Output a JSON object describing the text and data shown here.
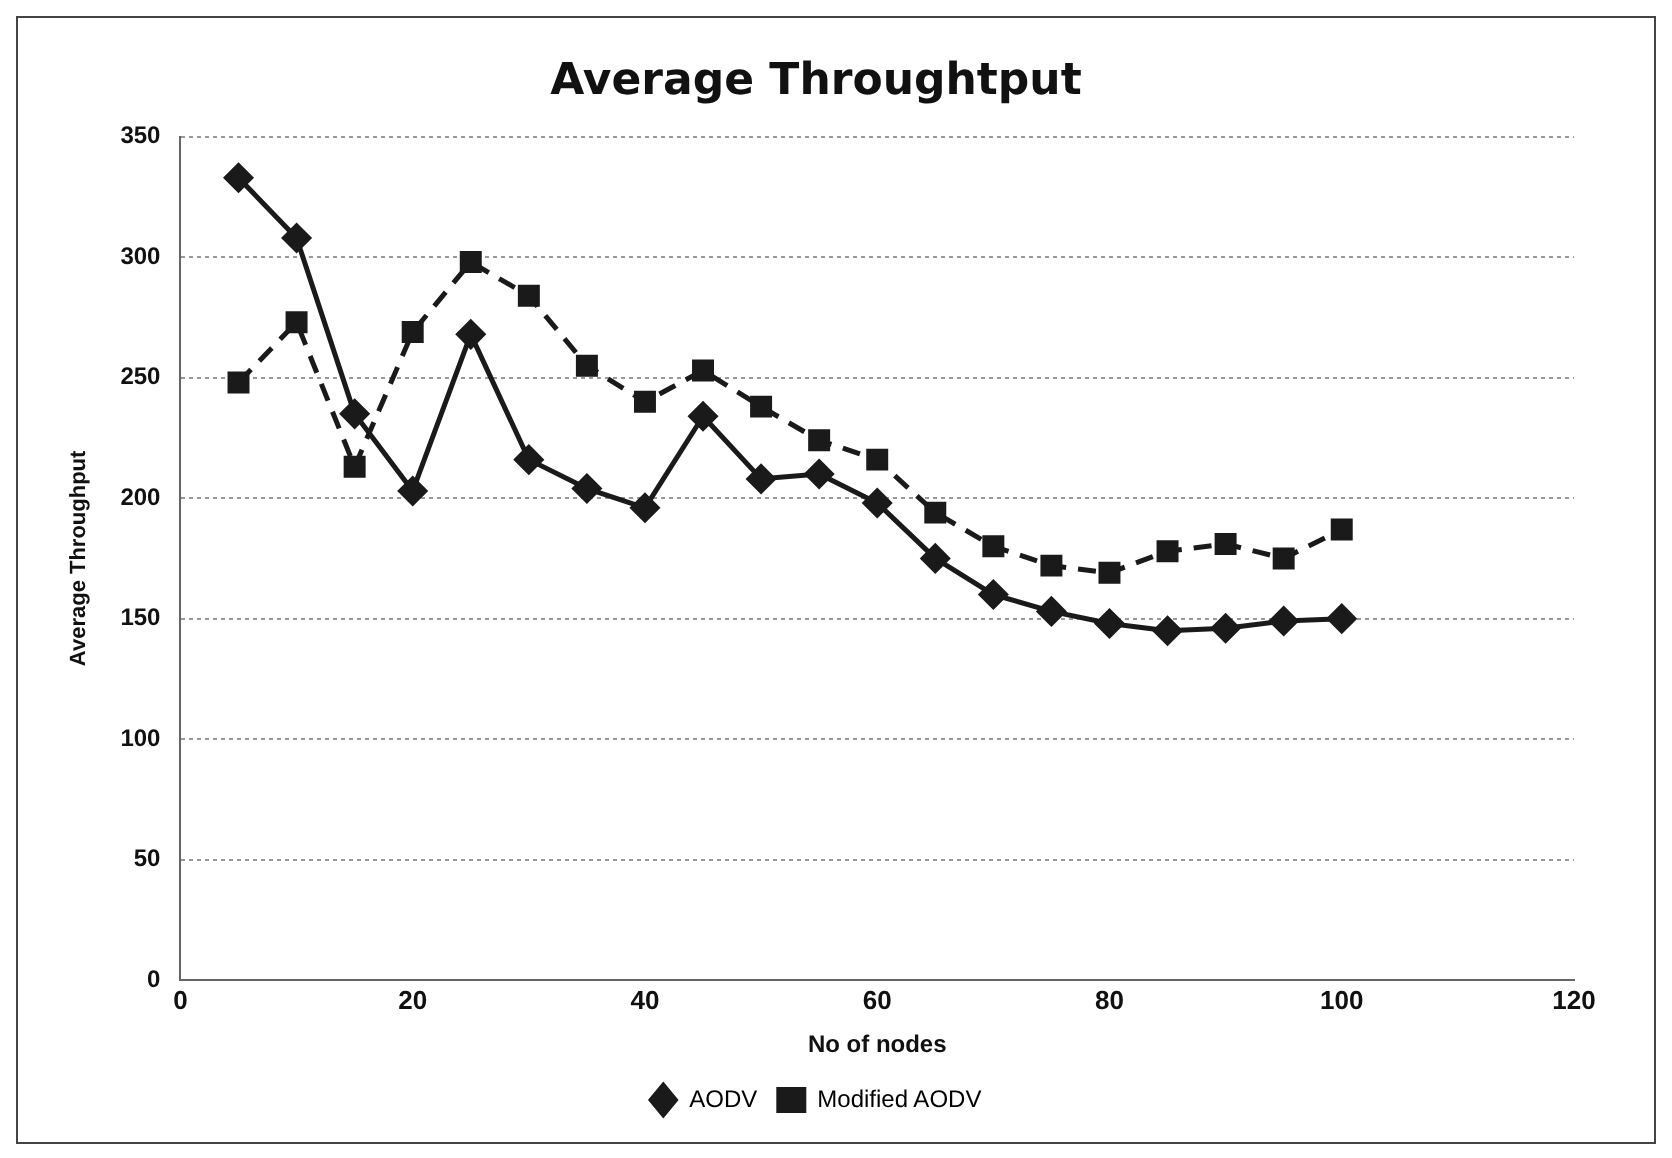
{
  "chart_data": {
    "type": "line",
    "title": "Average Throughtput",
    "xlabel": "No of nodes",
    "ylabel": "Average Throughput",
    "x": [
      5,
      10,
      15,
      20,
      25,
      30,
      35,
      40,
      45,
      50,
      55,
      60,
      65,
      70,
      75,
      80,
      85,
      90,
      95,
      100
    ],
    "series": [
      {
        "name": "AODV",
        "color": "#1a1a1a",
        "marker": "diamond",
        "line_style": "solid",
        "values": [
          333,
          308,
          235,
          203,
          268,
          216,
          204,
          196,
          234,
          208,
          210,
          198,
          175,
          160,
          153,
          148,
          145,
          146,
          149,
          150
        ]
      },
      {
        "name": "Modified AODV",
        "color": "#1a1a1a",
        "marker": "square",
        "line_style": "dashed",
        "values": [
          248,
          273,
          213,
          269,
          298,
          284,
          255,
          240,
          253,
          238,
          224,
          216,
          194,
          180,
          172,
          169,
          178,
          181,
          175,
          187
        ]
      }
    ],
    "xlim": [
      0,
      120
    ],
    "xticks": [
      0,
      20,
      40,
      60,
      80,
      100,
      120
    ],
    "ylim": [
      0,
      350
    ],
    "yticks": [
      0,
      50,
      100,
      150,
      200,
      250,
      300,
      350
    ],
    "grid": "y",
    "legend": "bottom"
  }
}
